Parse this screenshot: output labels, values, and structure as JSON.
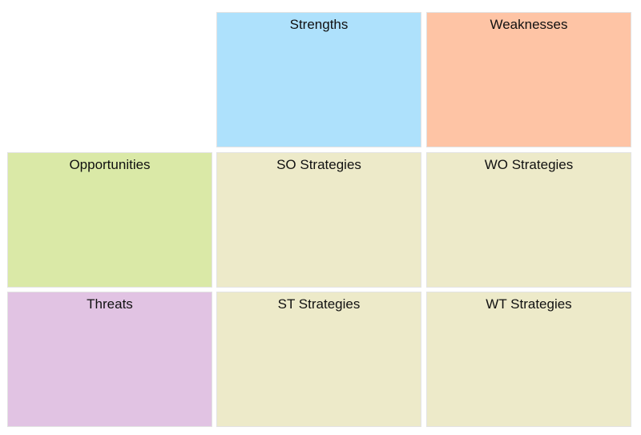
{
  "matrix": {
    "strengths": {
      "label": "Strengths",
      "color": "#aee1fc"
    },
    "weaknesses": {
      "label": "Weaknesses",
      "color": "#fec4a5"
    },
    "opportunities": {
      "label": "Opportunities",
      "color": "#dae9a7"
    },
    "threats": {
      "label": "Threats",
      "color": "#e1c3e3"
    },
    "so": {
      "label": "SO Strategies",
      "color": "#edeac9"
    },
    "wo": {
      "label": "WO Strategies",
      "color": "#edeac9"
    },
    "st": {
      "label": "ST Strategies",
      "color": "#edeac9"
    },
    "wt": {
      "label": "WT Strategies",
      "color": "#edeac9"
    }
  }
}
